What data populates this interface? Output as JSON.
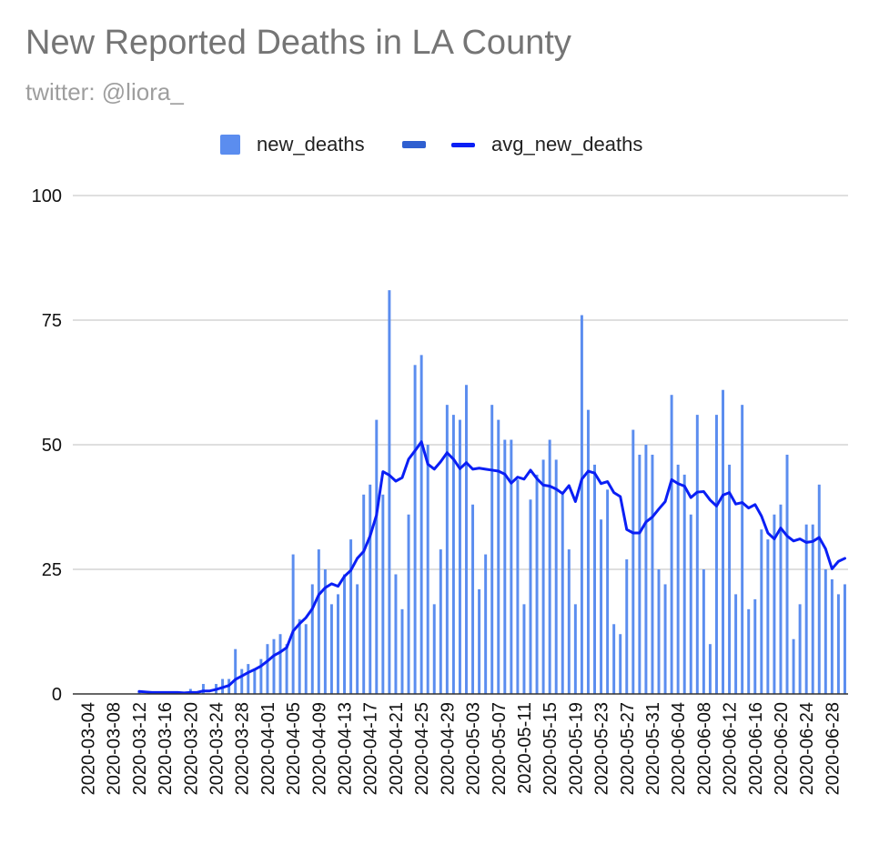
{
  "chart_data": {
    "type": "bar",
    "title": "New Reported Deaths in LA County",
    "subtitle": "twitter: @liora_",
    "xlabel": "",
    "ylabel": "",
    "ylim": [
      0,
      100
    ],
    "yticks": [
      0,
      25,
      50,
      75,
      100
    ],
    "grid": true,
    "legend_position": "top-center",
    "start_date": "2020-03-04",
    "x_tick_labels": [
      "2020-03-04",
      "2020-03-08",
      "2020-03-12",
      "2020-03-16",
      "2020-03-20",
      "2020-03-24",
      "2020-03-28",
      "2020-04-01",
      "2020-04-05",
      "2020-04-09",
      "2020-04-13",
      "2020-04-17",
      "2020-04-21",
      "2020-04-25",
      "2020-04-29",
      "2020-05-03",
      "2020-05-07",
      "2020-05-11",
      "2020-05-15",
      "2020-05-19",
      "2020-05-23",
      "2020-05-27",
      "2020-05-31",
      "2020-06-04",
      "2020-06-08",
      "2020-06-12",
      "2020-06-16",
      "2020-06-20",
      "2020-06-24",
      "2020-06-28"
    ],
    "series": [
      {
        "name": "new_deaths",
        "type": "bar",
        "color": "#5b8def",
        "values": [
          0,
          0,
          0,
          0,
          0,
          0,
          0,
          0,
          0.5,
          0,
          0,
          0,
          0,
          0,
          0,
          0,
          1,
          0,
          2,
          0,
          2,
          3,
          3,
          9,
          5,
          6,
          5,
          7,
          10,
          11,
          12,
          10,
          28,
          15,
          14,
          22,
          29,
          25,
          18,
          20,
          24,
          31,
          22,
          40,
          42,
          55,
          40,
          81,
          24,
          17,
          36,
          66,
          68,
          50,
          18,
          29,
          58,
          56,
          55,
          62,
          38,
          21,
          28,
          58,
          55,
          51,
          51,
          43,
          18,
          39,
          44,
          47,
          51,
          47,
          40,
          29,
          18,
          76,
          57,
          46,
          35,
          41,
          14,
          12,
          27,
          53,
          48,
          50,
          48,
          25,
          22,
          60,
          46,
          44,
          36,
          56,
          25,
          10,
          56,
          61,
          46,
          20,
          58,
          17,
          19,
          33,
          31,
          36,
          38,
          48,
          11,
          18,
          34,
          34,
          42,
          25,
          23,
          20,
          22
        ]
      },
      {
        "name": "avg_new_deaths",
        "type": "line",
        "color": "#0a1ff5",
        "values": [
          null,
          null,
          null,
          null,
          null,
          null,
          null,
          null,
          0.5,
          0.4,
          0.3,
          0.3,
          0.3,
          0.3,
          0.3,
          0.2,
          0.3,
          0.3,
          0.6,
          0.6,
          0.9,
          1.3,
          1.7,
          2.9,
          3.6,
          4.3,
          4.9,
          5.6,
          6.6,
          7.7,
          8.4,
          9.3,
          12.6,
          14.1,
          15.3,
          17.1,
          19.9,
          21.3,
          22.1,
          21.6,
          23.6,
          24.8,
          27.2,
          28.6,
          31.7,
          35.9,
          44.6,
          43.9,
          42.7,
          43.4,
          47.1,
          48.8,
          50.6,
          46.1,
          45.1,
          46.6,
          48.4,
          47.1,
          45.2,
          46.4,
          45.1,
          45.3,
          45.1,
          44.9,
          44.7,
          44.1,
          42.3,
          43.5,
          43.1,
          44.9,
          43.2,
          41.9,
          41.7,
          41.1,
          40.2,
          41.8,
          38.6,
          43.1,
          44.7,
          44.3,
          42.2,
          42.6,
          40.4,
          39.6,
          33.0,
          32.3,
          32.3,
          34.5,
          35.5,
          37.1,
          38.6,
          43.0,
          42.2,
          41.7,
          39.4,
          40.5,
          40.6,
          38.9,
          37.7,
          39.9,
          40.4,
          38.1,
          38.4,
          37.3,
          38.0,
          35.7,
          32.3,
          31.1,
          33.3,
          31.7,
          30.7,
          31.1,
          30.4,
          30.6,
          31.4,
          29.1,
          25.1,
          26.6,
          27.2
        ]
      }
    ]
  },
  "legend": {
    "items": [
      {
        "label": "new_deaths",
        "swatch": "bar"
      },
      {
        "label": "avg_new_deaths",
        "swatch": "line"
      }
    ]
  },
  "colors": {
    "bar": "#5b8def",
    "bar_dash": "#2f5fd0",
    "line": "#0a1ff5",
    "grid": "#cccccc",
    "axis": "#333333",
    "tick_text": "#111111"
  }
}
